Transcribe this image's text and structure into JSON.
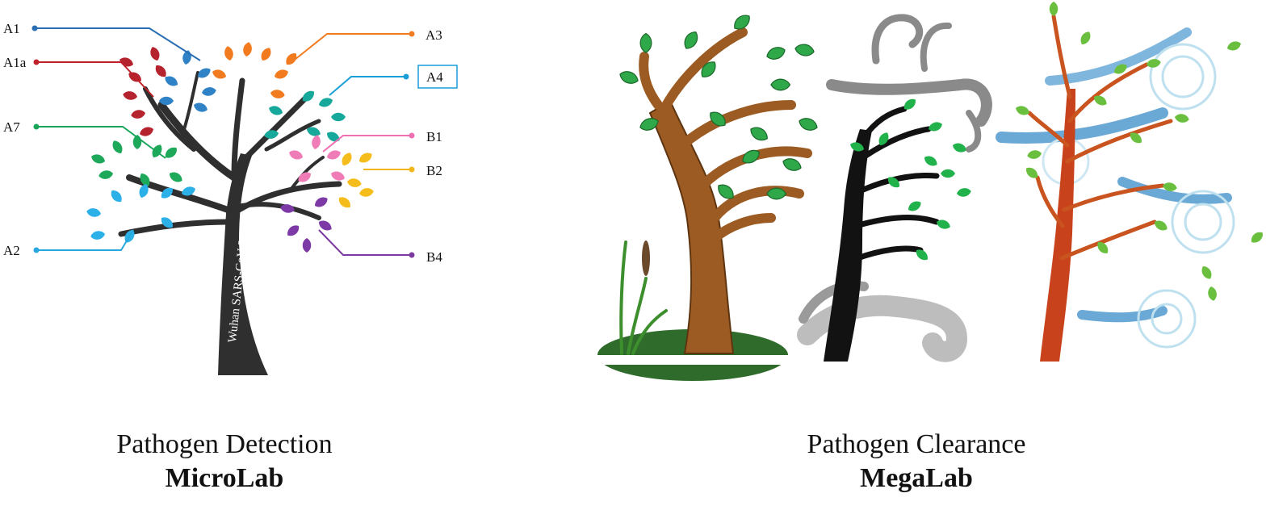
{
  "left_panel": {
    "trunk_label": "Wuhan SARS-CoV-2",
    "clades": [
      {
        "label": "A1",
        "color": "#2a6fb4"
      },
      {
        "label": "A1a",
        "color": "#c0202a"
      },
      {
        "label": "A7",
        "color": "#1aa55a"
      },
      {
        "label": "A2",
        "color": "#27a8df"
      },
      {
        "label": "A3",
        "color": "#f07c23"
      },
      {
        "label": "A4",
        "color": "#1a9ed8",
        "boxed": true
      },
      {
        "label": "B1",
        "color": "#ee6fb2"
      },
      {
        "label": "B2",
        "color": "#f2b51a"
      },
      {
        "label": "B4",
        "color": "#7b3aa0"
      }
    ],
    "caption_title": "Pathogen Detection",
    "caption_subtitle": "MicroLab"
  },
  "right_panel": {
    "caption_title": "Pathogen Clearance",
    "caption_subtitle": "MegaLab"
  }
}
